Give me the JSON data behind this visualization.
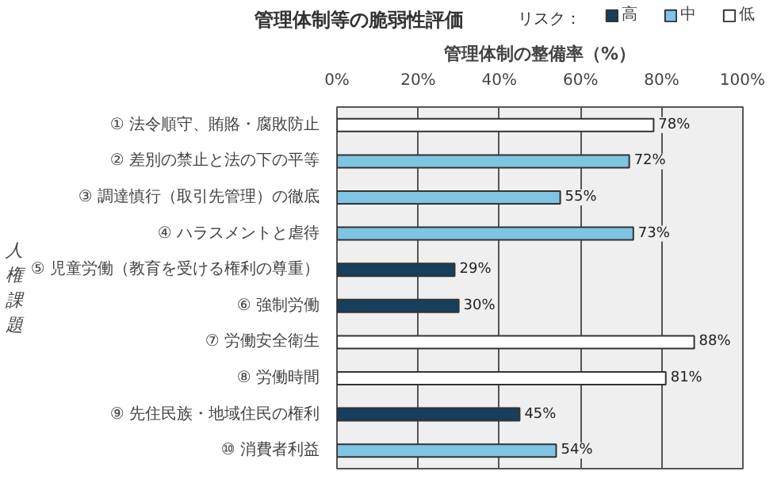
{
  "chart_data": {
    "type": "bar",
    "orientation": "horizontal",
    "title": "管理体制等の脆弱性評価",
    "xlabel": "管理体制の整備率（%）",
    "ylabel": "人権課題",
    "legend_title": "リスク：",
    "categories": [
      "① 法令順守、賄賂・腐敗防止",
      "② 差別の禁止と法の下の平等",
      "③ 調達慎行（取引先管理）の徹底",
      "④ ハラスメントと虐待",
      "⑤ 児童労働（教育を受ける権利の尊重）",
      "⑥ 強制労働",
      "⑦ 労働安全衛生",
      "⑧ 労働時間",
      "⑨ 先住民族・地域住民の権利",
      "⑩ 消費者利益"
    ],
    "series": [
      {
        "name": "高",
        "color": "#173f5c",
        "values": [
          null,
          null,
          null,
          null,
          29,
          30,
          null,
          null,
          45,
          null
        ],
        "value_labels": [
          null,
          null,
          null,
          null,
          "29%",
          "30%",
          null,
          null,
          "45%",
          null
        ]
      },
      {
        "name": "中",
        "color": "#7fc4e3",
        "values": [
          null,
          72,
          55,
          73,
          null,
          null,
          null,
          null,
          null,
          54
        ],
        "value_labels": [
          null,
          "72%",
          "55%",
          "73%",
          null,
          null,
          null,
          null,
          null,
          "54%"
        ]
      },
      {
        "name": "低",
        "color": "#ffffff",
        "values": [
          78,
          null,
          null,
          null,
          null,
          null,
          88,
          81,
          null,
          null
        ],
        "value_labels": [
          "78%",
          null,
          null,
          null,
          null,
          null,
          "88%",
          "81%",
          null,
          null
        ]
      }
    ],
    "xlim": [
      0,
      100
    ],
    "xticks": [
      {
        "value": 0,
        "label": "0%"
      },
      {
        "value": 20,
        "label": "20%"
      },
      {
        "value": 40,
        "label": "40%"
      },
      {
        "value": 60,
        "label": "60%"
      },
      {
        "value": 80,
        "label": "80%"
      },
      {
        "value": 100,
        "label": "100%"
      }
    ],
    "grid": "x",
    "legend": "top right"
  }
}
